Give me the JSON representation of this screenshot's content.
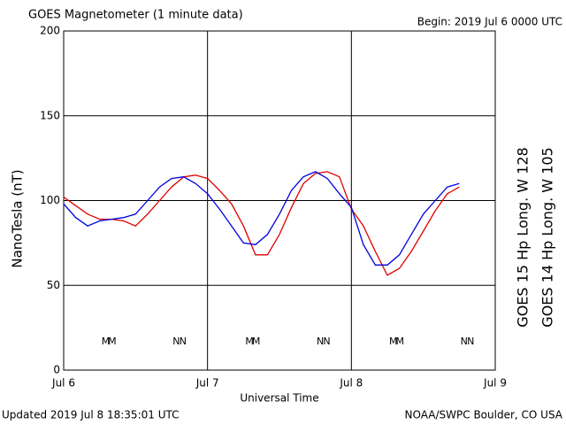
{
  "chart_data": {
    "type": "line",
    "title": "GOES Magnetometer (1 minute data)",
    "begin": "Begin:  2019 Jul 6 0000 UTC",
    "updated": "Updated 2019 Jul  8 18:35:01 UTC",
    "source": "NOAA/SWPC Boulder, CO USA",
    "xlabel": "Universal Time",
    "ylabel": "NanoTesla (nT)",
    "x": [
      0,
      2,
      4,
      6,
      8,
      10,
      12,
      14,
      16,
      18,
      20,
      22,
      24,
      26,
      28,
      30,
      32,
      34,
      36,
      38,
      40,
      42,
      44,
      46,
      48,
      50,
      52,
      54,
      56,
      58,
      60,
      62,
      64,
      66
    ],
    "xlim": [
      0,
      72
    ],
    "xticks": [
      {
        "value": 0,
        "label": "Jul 6"
      },
      {
        "value": 24,
        "label": "Jul 7"
      },
      {
        "value": 48,
        "label": "Jul 8"
      },
      {
        "value": 72,
        "label": "Jul 9"
      }
    ],
    "ylim": [
      0,
      200
    ],
    "yticks": [
      0,
      50,
      100,
      150,
      200
    ],
    "grid": true,
    "series": [
      {
        "name": "GOES 15 Hp  Long. W 128",
        "color": "#e00000",
        "values": [
          102,
          97,
          92,
          89,
          89,
          88,
          85,
          92,
          100,
          108,
          114,
          115,
          113,
          106,
          98,
          85,
          68,
          68,
          80,
          96,
          110,
          116,
          117,
          114,
          95,
          85,
          70,
          56,
          60,
          70,
          82,
          94,
          104,
          108
        ],
        "markers": [
          {
            "label": "M",
            "x": 8.1
          },
          {
            "label": "N",
            "x": 19.9
          },
          {
            "label": "M",
            "x": 32.1
          },
          {
            "label": "N",
            "x": 43.9
          },
          {
            "label": "M",
            "x": 56.1
          },
          {
            "label": "N",
            "x": 67.9
          }
        ]
      },
      {
        "name": "GOES 14 Hp  Long. W 105",
        "color": "#0000e0",
        "values": [
          98,
          90,
          85,
          88,
          89,
          90,
          92,
          100,
          108,
          113,
          114,
          110,
          104,
          95,
          85,
          75,
          74,
          80,
          92,
          106,
          114,
          117,
          113,
          104,
          96,
          74,
          62,
          62,
          68,
          80,
          92,
          100,
          108,
          110
        ],
        "markers": [
          {
            "label": "M",
            "x": 7.0
          },
          {
            "label": "N",
            "x": 18.8
          },
          {
            "label": "M",
            "x": 31.0
          },
          {
            "label": "N",
            "x": 42.8
          },
          {
            "label": "M",
            "x": 55.0
          },
          {
            "label": "N",
            "x": 66.8
          }
        ]
      }
    ]
  }
}
